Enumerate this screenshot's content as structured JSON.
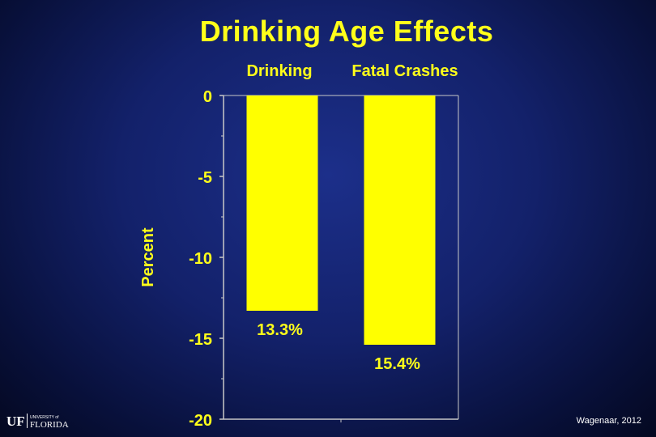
{
  "chart_data": {
    "type": "bar",
    "title": "Drinking Age Effects",
    "ylabel": "Percent",
    "xlabel": "",
    "categories": [
      "Drinking",
      "Fatal Crashes"
    ],
    "values": [
      -13.3,
      -15.4
    ],
    "data_labels": [
      "13.3%",
      "15.4%"
    ],
    "ylim": [
      -20,
      0
    ],
    "yticks": [
      0,
      -5,
      -10,
      -15,
      -20
    ],
    "grid": false,
    "bar_color": "#ffff00"
  },
  "footer": {
    "citation": "Wagenaar, 2012",
    "logo_text_uf": "UF",
    "logo_text_small": "UNIVERSITY of",
    "logo_text_big": "FLORIDA"
  },
  "colors": {
    "text_yellow": "#ffff1a",
    "axis": "#c8c8c8"
  }
}
